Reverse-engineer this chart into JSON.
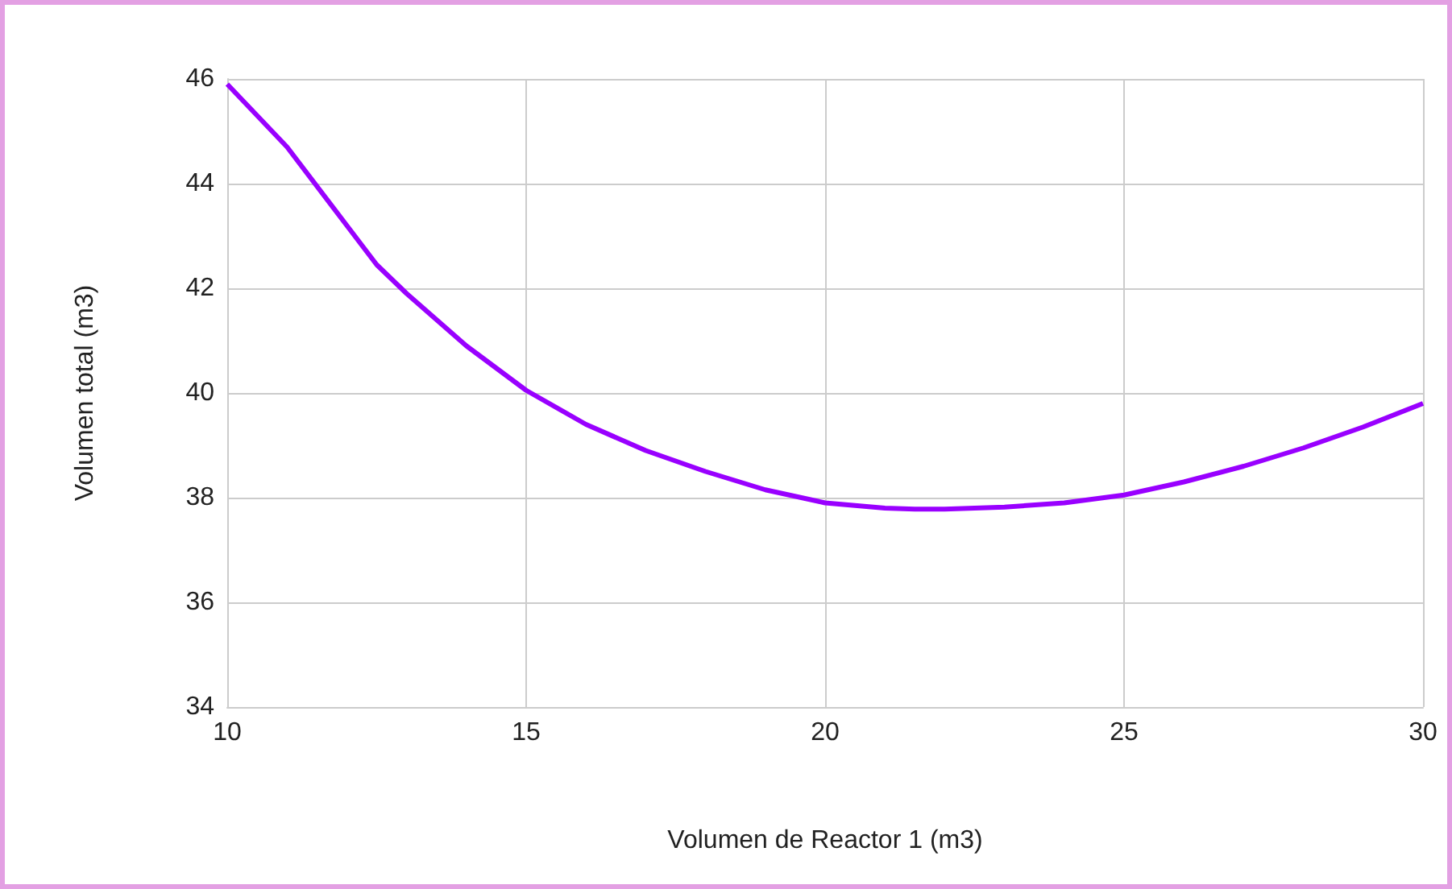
{
  "chart_data": {
    "type": "line",
    "xlabel": "Volumen de Reactor 1 (m3)",
    "ylabel": "Volumen total (m3)",
    "x": [
      10,
      11,
      12,
      12.5,
      13,
      14,
      15,
      16,
      17,
      18,
      19,
      20,
      21,
      21.5,
      22,
      23,
      24,
      25,
      26,
      27,
      28,
      29,
      30
    ],
    "series": [
      {
        "color": "#9900ff",
        "values": [
          45.9,
          44.7,
          43.2,
          42.45,
          41.9,
          40.9,
          40.05,
          39.4,
          38.9,
          38.5,
          38.15,
          37.9,
          37.8,
          37.78,
          37.78,
          37.82,
          37.9,
          38.05,
          38.3,
          38.6,
          38.95,
          39.35,
          39.8
        ]
      }
    ],
    "xlim": [
      10,
      30
    ],
    "xticks": [
      10,
      15,
      20,
      25,
      30
    ],
    "ylim": [
      34,
      46
    ],
    "yticks": [
      34,
      36,
      38,
      40,
      42,
      44,
      46
    ],
    "grid": true,
    "marker": "none",
    "line_style": "solid"
  }
}
